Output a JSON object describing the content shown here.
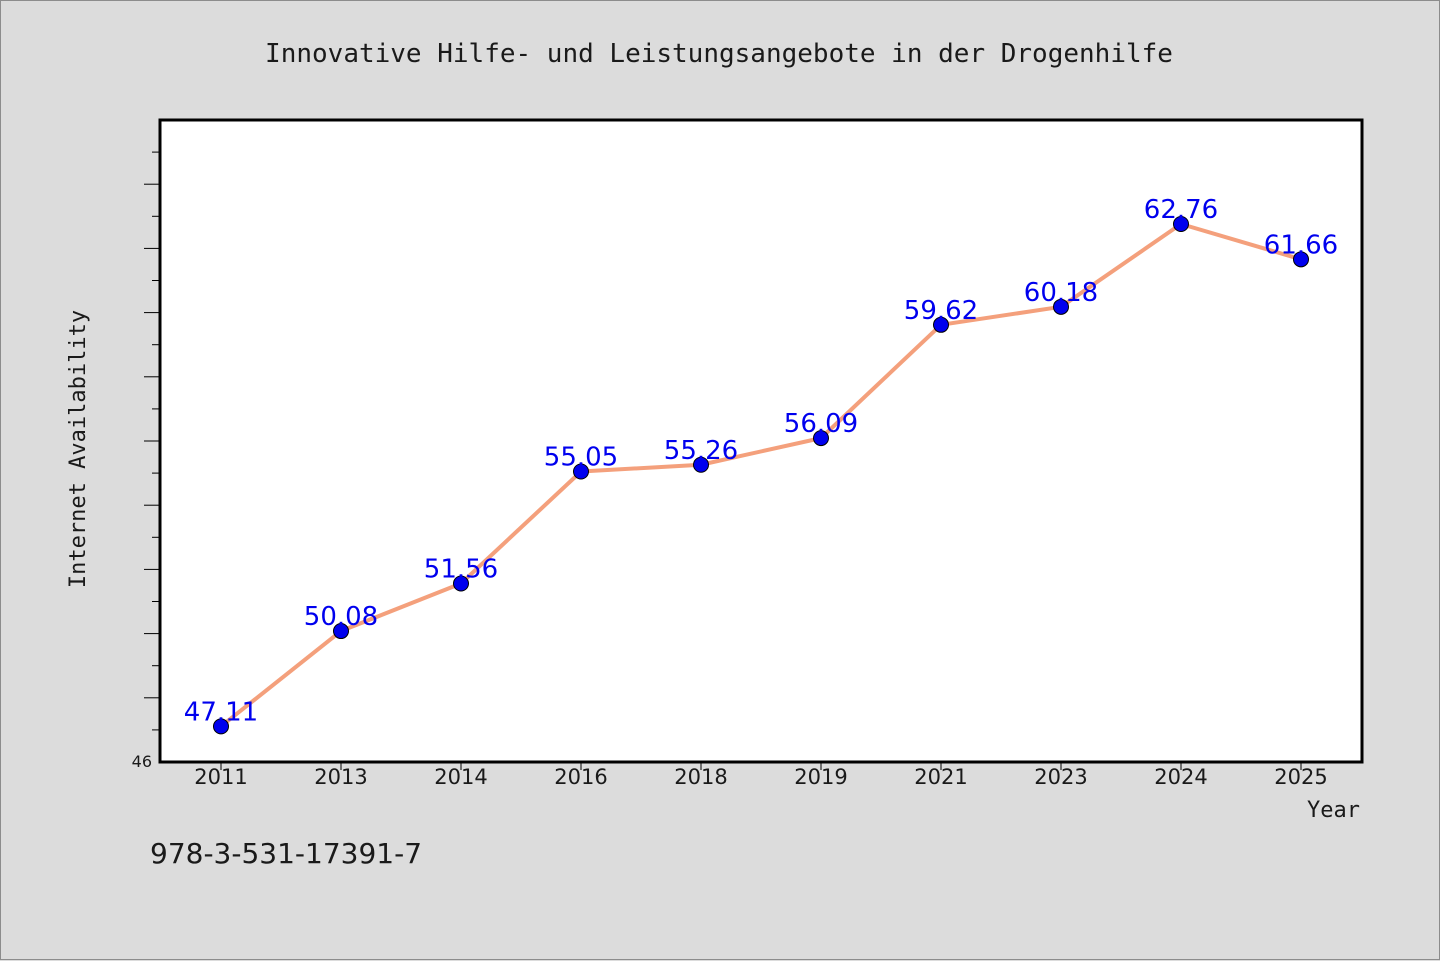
{
  "chart_data": {
    "type": "line",
    "title": "Innovative Hilfe- und Leistungsangebote in der Drogenhilfe",
    "xlabel": "Year",
    "ylabel": "Internet Availability",
    "categories": [
      "2011",
      "2013",
      "2014",
      "2016",
      "2018",
      "2019",
      "2021",
      "2023",
      "2024",
      "2025"
    ],
    "values": [
      47.11,
      50.08,
      51.56,
      55.05,
      55.26,
      56.09,
      59.62,
      60.18,
      62.76,
      61.66
    ],
    "data_labels": [
      "47.11",
      "50.08",
      "51.56",
      "55.05",
      "55.26",
      "56.09",
      "59.62",
      "60.18",
      "62.76",
      "61.66"
    ],
    "ylim": [
      46,
      66
    ],
    "y_tick_labels": [
      "46"
    ],
    "grid": false,
    "legend": "none",
    "line_color": "#f4a07c",
    "marker_color": "#0000ee",
    "label_color": "#0000ee"
  },
  "footer": {
    "isbn": "978-3-531-17391-7"
  }
}
